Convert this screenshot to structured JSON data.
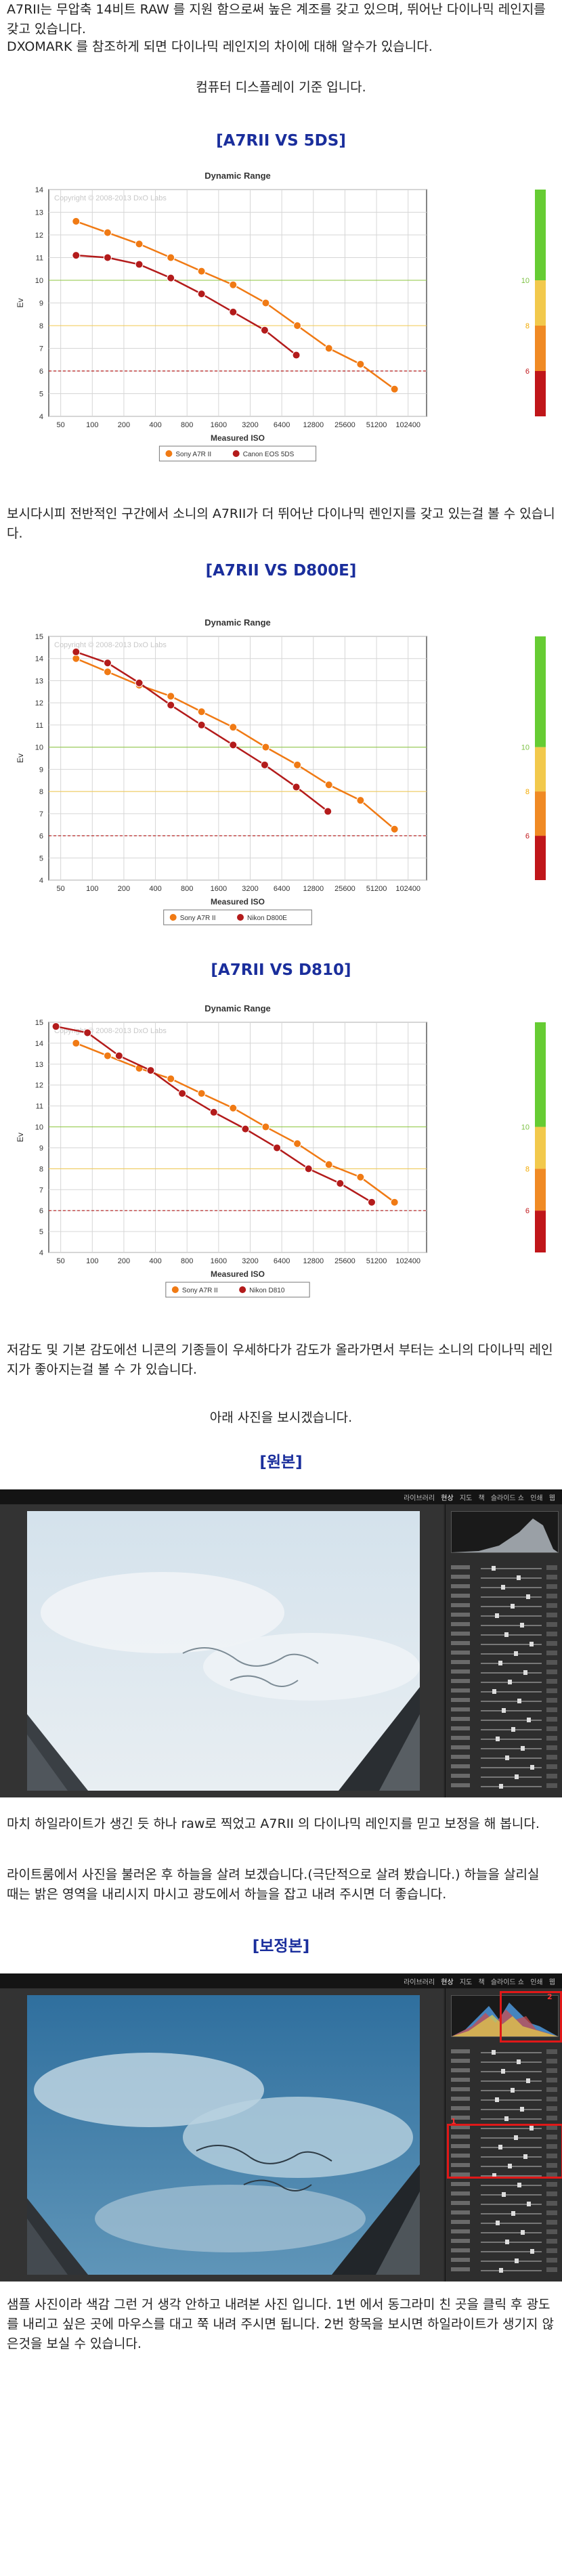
{
  "intro": {
    "p1": "A7RII는 무압축 14비트 RAW 를 지원 함으로써 높은 계조를 갖고 있으며, 뛰어난 다이나믹 레인지를 갖고 있습니다.",
    "p2": "DXOMARK 를 참조하게 되면 다이나믹 레인지의 차이에 대해 알수가 있습니다.",
    "p3": "컴퓨터 디스플레이 기준 입니다."
  },
  "comparisons": [
    {
      "heading": "[A7RII VS 5DS]",
      "caption": "보시다시피 전반적인 구간에서 소니의 A7RII가 더 뛰어난 다이나믹 렌인지를 갖고 있는걸 볼 수 있습니다."
    },
    {
      "heading": "[A7RII VS D800E]"
    },
    {
      "heading": "[A7RII VS D810]",
      "caption": "저감도 및 기본 감도에선 니콘의 기종들이 우세하다가 감도가 올라가면서 부터는 소니의 다이나믹 레인지가 좋아지는걸 볼 수 가 있습니다."
    }
  ],
  "photo_intro": "아래 사진을 보시겠습니다.",
  "original_heading": "[원본]",
  "original_caption": "마치 하일라이트가 생긴 듯 하나 raw로 찍었고 A7RII 의 다이나믹 레인지를 믿고 보정을 해 봅니다.",
  "edit_caption": "라이트룸에서 사진을 불러온 후 하늘을 살려 보겠습니다.(극단적으로 살려 봤습니다.) 하늘을 살리실 때는 밝은 영역을 내리시지 마시고 광도에서 하늘을 잡고 내려 주시면 더 좋습니다.",
  "edited_heading": "[보정본]",
  "final_caption": "샘플 사진이라 색감 그런 거 생각 안하고 내려본 사진 입니다. 1번 에서 동그라미 친 곳을 클릭 후 광도를 내리고 싶은 곳에 마우스를 대고 쭉 내려 주시면 됩니다. 2번 항목을 보시면 하일라이트가 생기지 않은것을 보실 수 있습니다.",
  "lightroom": {
    "nav": [
      "라이브러리",
      "현상",
      "지도",
      "책",
      "슬라이드 쇼",
      "인쇄",
      "웹"
    ],
    "active_index": 1,
    "markers": [
      "1",
      "2"
    ]
  },
  "colors": {
    "heading": "#1a2e9c",
    "sony": "#f07a14",
    "rival": "#b31b1b",
    "threshold": "#b31b1b"
  },
  "chart_data": [
    {
      "type": "line",
      "title": "Dynamic Range",
      "xlabel": "Measured ISO",
      "ylabel": "Ev",
      "watermark": "Copyright © 2008-2013 DxO Labs",
      "x_ticks": [
        "50",
        "100",
        "200",
        "400",
        "800",
        "1600",
        "3200",
        "6400",
        "12800",
        "25600",
        "51200",
        "102400"
      ],
      "ylim": [
        4,
        14
      ],
      "grid": true,
      "legend": "bottom",
      "threshold": 6,
      "scale_bar_labels": [
        "10",
        "8",
        "6"
      ],
      "series": [
        {
          "name": "Sony A7R II",
          "color": "#f07a14",
          "points": [
            [
              70,
              12.6
            ],
            [
              140,
              12.1
            ],
            [
              280,
              11.6
            ],
            [
              560,
              11.0
            ],
            [
              1100,
              10.4
            ],
            [
              2200,
              9.8
            ],
            [
              4500,
              9.0
            ],
            [
              9000,
              8.0
            ],
            [
              18000,
              7.0
            ],
            [
              36000,
              6.3
            ],
            [
              76000,
              5.2
            ]
          ]
        },
        {
          "name": "Canon EOS 5DS",
          "color": "#b31b1b",
          "points": [
            [
              70,
              11.1
            ],
            [
              140,
              11.0
            ],
            [
              280,
              10.7
            ],
            [
              560,
              10.1
            ],
            [
              1100,
              9.4
            ],
            [
              2200,
              8.6
            ],
            [
              4400,
              7.8
            ],
            [
              8800,
              6.7
            ]
          ]
        }
      ]
    },
    {
      "type": "line",
      "title": "Dynamic Range",
      "xlabel": "Measured ISO",
      "ylabel": "Ev",
      "watermark": "Copyright © 2008-2013 DxO Labs",
      "x_ticks": [
        "50",
        "100",
        "200",
        "400",
        "800",
        "1600",
        "3200",
        "6400",
        "12800",
        "25600",
        "51200",
        "102400"
      ],
      "ylim": [
        4,
        15
      ],
      "grid": true,
      "legend": "bottom",
      "threshold": 6,
      "scale_bar_labels": [
        "10",
        "8",
        "6"
      ],
      "series": [
        {
          "name": "Sony A7R II",
          "color": "#f07a14",
          "points": [
            [
              70,
              14.0
            ],
            [
              140,
              13.4
            ],
            [
              280,
              12.8
            ],
            [
              560,
              12.3
            ],
            [
              1100,
              11.6
            ],
            [
              2200,
              10.9
            ],
            [
              4500,
              10.0
            ],
            [
              9000,
              9.2
            ],
            [
              18000,
              8.3
            ],
            [
              36000,
              7.6
            ],
            [
              76000,
              6.3
            ]
          ]
        },
        {
          "name": "Nikon D800E",
          "color": "#b31b1b",
          "points": [
            [
              70,
              14.3
            ],
            [
              140,
              13.8
            ],
            [
              280,
              12.9
            ],
            [
              560,
              11.9
            ],
            [
              1100,
              11.0
            ],
            [
              2200,
              10.1
            ],
            [
              4400,
              9.2
            ],
            [
              8800,
              8.2
            ],
            [
              17600,
              7.1
            ]
          ]
        }
      ]
    },
    {
      "type": "line",
      "title": "Dynamic Range",
      "xlabel": "Measured ISO",
      "ylabel": "Ev",
      "watermark": "Copyright © 2008-2013 DxO Labs",
      "x_ticks": [
        "50",
        "100",
        "200",
        "400",
        "800",
        "1600",
        "3200",
        "6400",
        "12800",
        "25600",
        "51200",
        "102400"
      ],
      "ylim": [
        4,
        15
      ],
      "grid": true,
      "legend": "bottom",
      "threshold": 6,
      "scale_bar_labels": [
        "10",
        "8",
        "6"
      ],
      "series": [
        {
          "name": "Sony A7R II",
          "color": "#f07a14",
          "points": [
            [
              70,
              14.0
            ],
            [
              140,
              13.4
            ],
            [
              280,
              12.8
            ],
            [
              560,
              12.3
            ],
            [
              1100,
              11.6
            ],
            [
              2200,
              10.9
            ],
            [
              4500,
              10.0
            ],
            [
              9000,
              9.2
            ],
            [
              18000,
              8.2
            ],
            [
              36000,
              7.6
            ],
            [
              76000,
              6.4
            ]
          ]
        },
        {
          "name": "Nikon D810",
          "color": "#b31b1b",
          "points": [
            [
              45,
              14.8
            ],
            [
              90,
              14.5
            ],
            [
              180,
              13.4
            ],
            [
              360,
              12.7
            ],
            [
              720,
              11.6
            ],
            [
              1440,
              10.7
            ],
            [
              2880,
              9.9
            ],
            [
              5760,
              9.0
            ],
            [
              11520,
              8.0
            ],
            [
              23040,
              7.3
            ],
            [
              46080,
              6.4
            ]
          ]
        }
      ]
    }
  ]
}
